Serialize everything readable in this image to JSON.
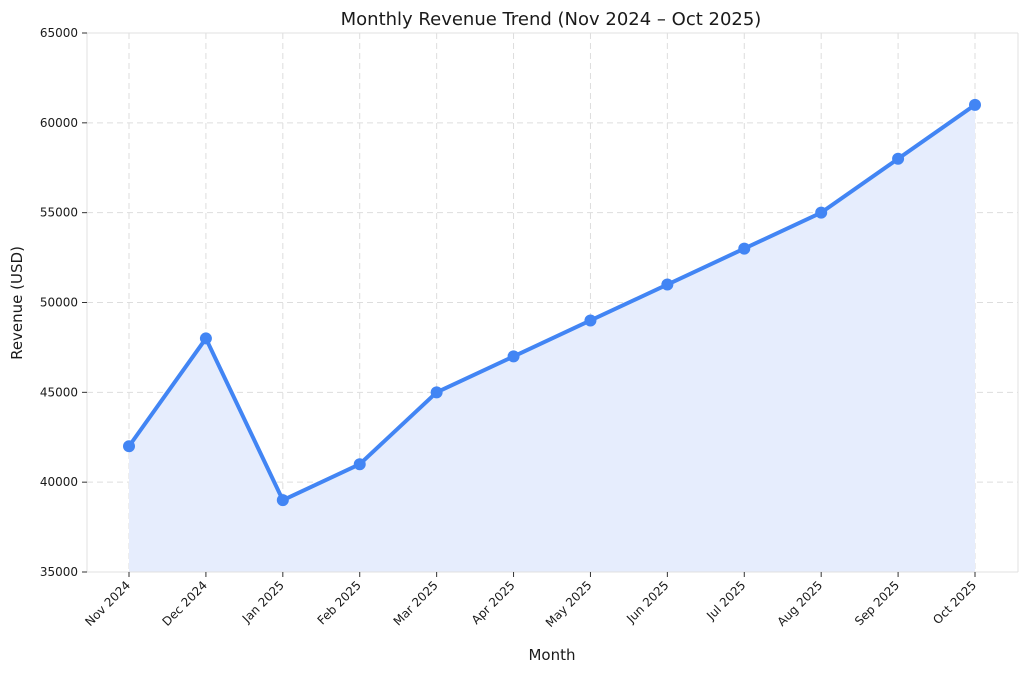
{
  "chart_data": {
    "type": "area",
    "title": "Monthly Revenue Trend (Nov 2024 – Oct 2025)",
    "xlabel": "Month",
    "ylabel": "Revenue (USD)",
    "categories": [
      "Nov 2024",
      "Dec 2024",
      "Jan 2025",
      "Feb 2025",
      "Mar 2025",
      "Apr 2025",
      "May 2025",
      "Jun 2025",
      "Jul 2025",
      "Aug 2025",
      "Sep 2025",
      "Oct 2025"
    ],
    "series": [
      {
        "values": [
          42000,
          48000,
          39000,
          41000,
          45000,
          47000,
          49000,
          51000,
          53000,
          55000,
          58000,
          61000
        ]
      }
    ],
    "ylim": [
      35000,
      65000
    ],
    "yticks": [
      "35000",
      "40000",
      "45000",
      "50000",
      "55000",
      "60000",
      "65000"
    ],
    "ytick_values": [
      35000,
      40000,
      45000,
      50000,
      55000,
      60000,
      65000
    ],
    "grid": true,
    "legend": "none",
    "colors": {
      "line": "#4285f4",
      "fill": "#e6edfd",
      "grid": "#dddddd",
      "spine": "#e0e0e0"
    }
  }
}
